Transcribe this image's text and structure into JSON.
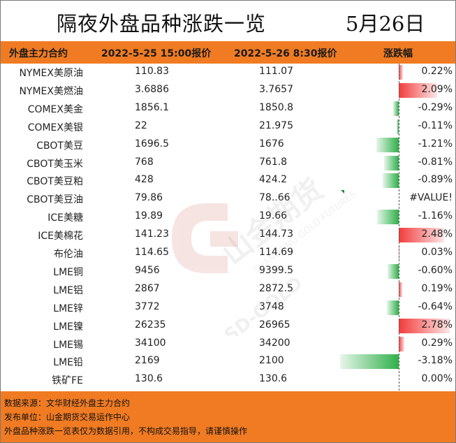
{
  "title": "隔夜外盘品种涨跌一览",
  "date": "5月26日",
  "headers": {
    "name": "外盘主力合约",
    "price_a": "2022-5-25 15:00报价",
    "price_b": "2022-5-26 8:30报价",
    "change": "涨跌幅"
  },
  "rows": [
    {
      "name": "NYMEX美原油",
      "a": "110.83",
      "b": "111.07",
      "pct": "0.22%",
      "v": 0.22
    },
    {
      "name": "NYMEX美燃油",
      "a": "3.6886",
      "b": "3.7657",
      "pct": "2.09%",
      "v": 2.09
    },
    {
      "name": "COMEX美金",
      "a": "1856.1",
      "b": "1850.8",
      "pct": "-0.29%",
      "v": -0.29
    },
    {
      "name": "COMEX美银",
      "a": "22",
      "b": "21.975",
      "pct": "-0.11%",
      "v": -0.11
    },
    {
      "name": "CBOT美豆",
      "a": "1696.5",
      "b": "1676",
      "pct": "-1.21%",
      "v": -1.21
    },
    {
      "name": "CBOT美玉米",
      "a": "768",
      "b": "761.8",
      "pct": "-0.81%",
      "v": -0.81
    },
    {
      "name": "CBOT美豆粕",
      "a": "428",
      "b": "424.2",
      "pct": "-0.89%",
      "v": -0.89
    },
    {
      "name": "CBOT美豆油",
      "a": "79.86",
      "b": "78..66",
      "pct": "#VALUE!",
      "v": 0
    },
    {
      "name": "ICE美糖",
      "a": "19.89",
      "b": "19.66",
      "pct": "-1.16%",
      "v": -1.16
    },
    {
      "name": "ICE美棉花",
      "a": "141.23",
      "b": "144.73",
      "pct": "2.48%",
      "v": 2.48
    },
    {
      "name": "布伦油",
      "a": "114.65",
      "b": "114.69",
      "pct": "0.03%",
      "v": 0.03
    },
    {
      "name": "LME铜",
      "a": "9456",
      "b": "9399.5",
      "pct": "-0.60%",
      "v": -0.6
    },
    {
      "name": "LME铝",
      "a": "2867",
      "b": "2872.5",
      "pct": "0.19%",
      "v": 0.19
    },
    {
      "name": "LME锌",
      "a": "3772",
      "b": "3748",
      "pct": "-0.64%",
      "v": -0.64
    },
    {
      "name": "LME镍",
      "a": "26235",
      "b": "26965",
      "pct": "2.78%",
      "v": 2.78
    },
    {
      "name": "LME锡",
      "a": "34100",
      "b": "34200",
      "pct": "0.29%",
      "v": 0.29
    },
    {
      "name": "LME铅",
      "a": "2169",
      "b": "2100",
      "pct": "-3.18%",
      "v": -3.18
    },
    {
      "name": "铁矿FE",
      "a": "130.6",
      "b": "130.6",
      "pct": "0.00%",
      "v": 0.0
    }
  ],
  "footer": [
    "数据来源：文华财经外盘主力合约",
    "发布单位：山金期货交易运作中心",
    "外盘品种涨跌一览表仅为数据引用，不构成交易指导，请谨慎操作"
  ],
  "watermark": {
    "brand": "山金期货",
    "en": "SD-GOLD",
    "en2": "SHANDONG GOLD FUTURES"
  },
  "colors": {
    "orange": "#f07b22",
    "red": "#f23b3b",
    "green": "#2fb04a"
  }
}
